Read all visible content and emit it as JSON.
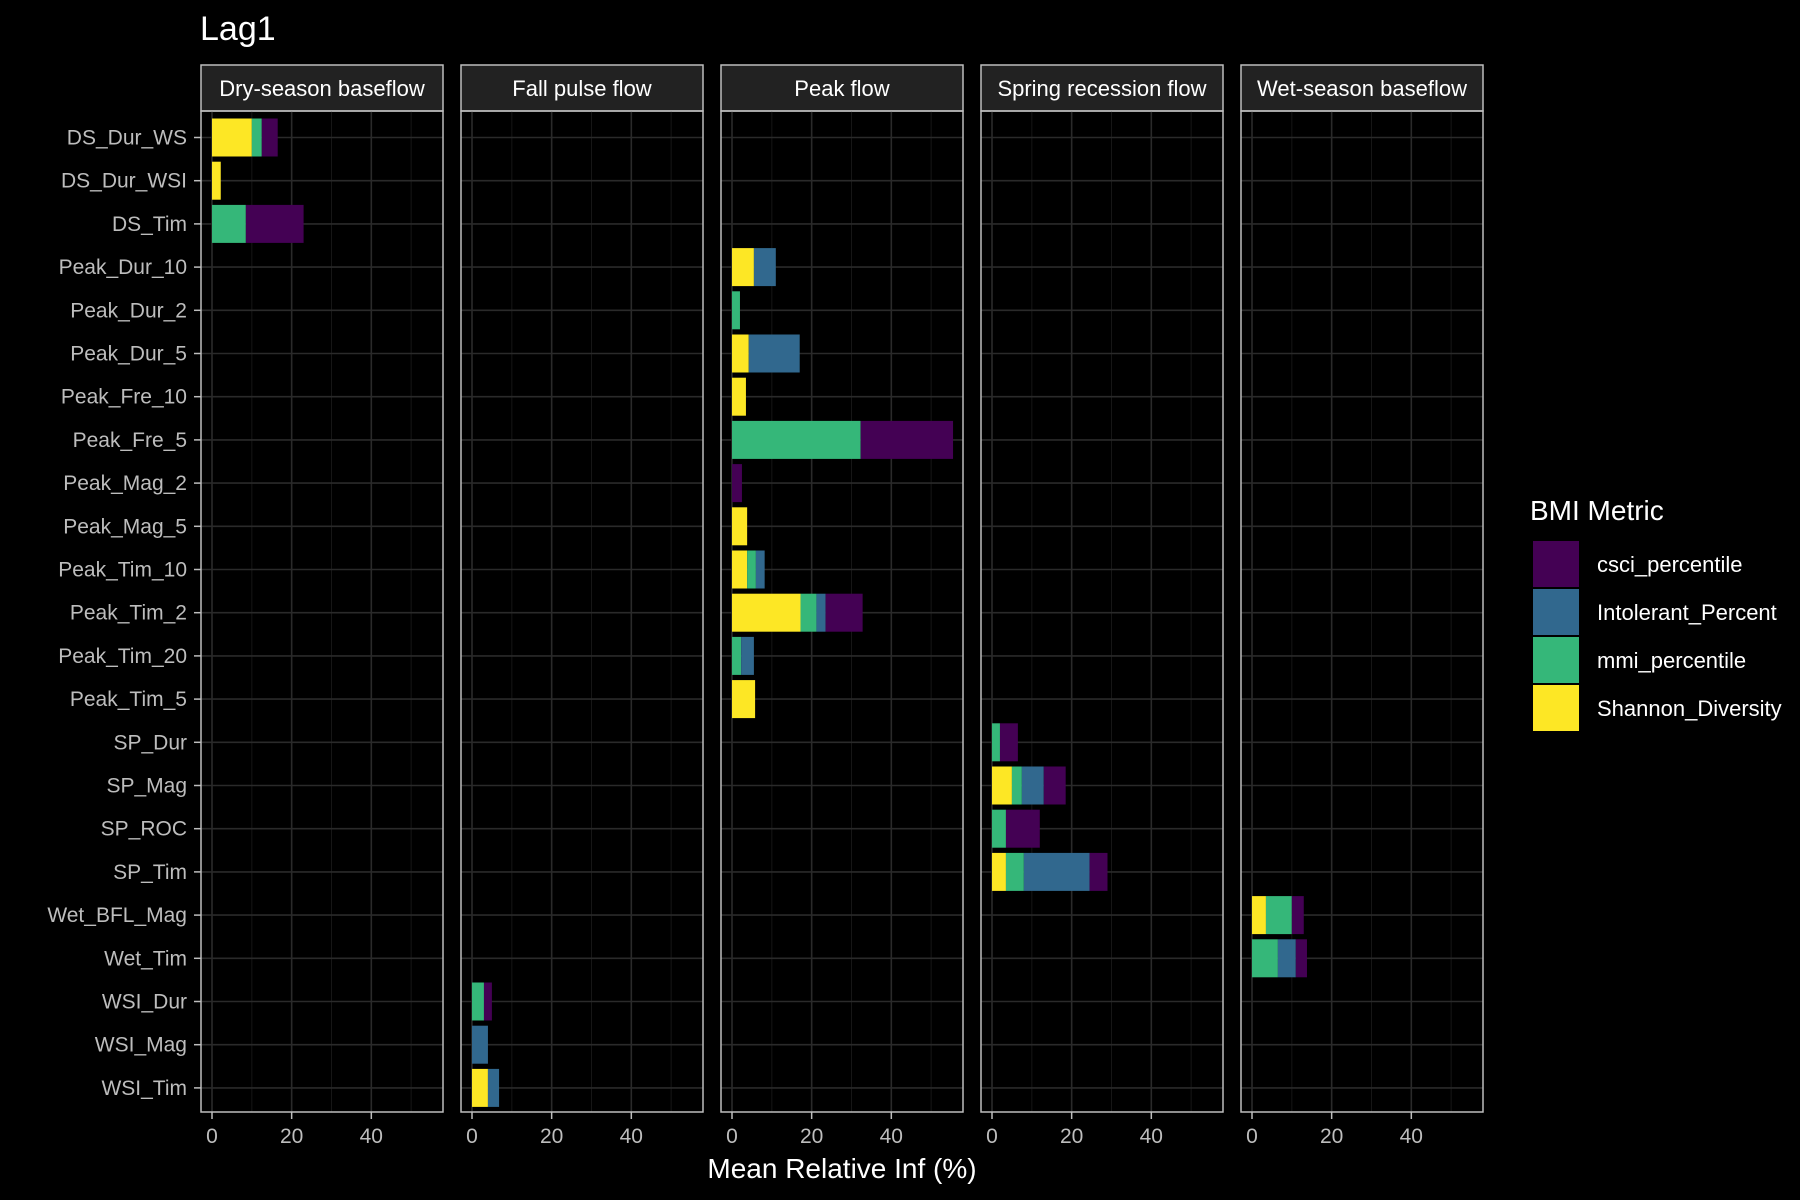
{
  "chart_data": {
    "type": "bar",
    "orientation": "horizontal",
    "stacked": true,
    "title": "Lag1",
    "xlabel": "Mean Relative Inf (%)",
    "ylabel": "",
    "xlim": [
      0,
      58
    ],
    "xticks": [
      0,
      20,
      40
    ],
    "grid": true,
    "legend": {
      "title": "BMI Metric",
      "position": "right",
      "items": [
        {
          "name": "csci_percentile",
          "color": "#440154"
        },
        {
          "name": "Intolerant_Percent",
          "color": "#31688E"
        },
        {
          "name": "mmi_percentile",
          "color": "#35B779"
        },
        {
          "name": "Shannon_Diversity",
          "color": "#FDE725"
        }
      ]
    },
    "categories": [
      "DS_Dur_WS",
      "DS_Dur_WSI",
      "DS_Tim",
      "Peak_Dur_10",
      "Peak_Dur_2",
      "Peak_Dur_5",
      "Peak_Fre_10",
      "Peak_Fre_5",
      "Peak_Mag_2",
      "Peak_Mag_5",
      "Peak_Tim_10",
      "Peak_Tim_2",
      "Peak_Tim_20",
      "Peak_Tim_5",
      "SP_Dur",
      "SP_Mag",
      "SP_ROC",
      "SP_Tim",
      "Wet_BFL_Mag",
      "Wet_Tim",
      "WSI_Dur",
      "WSI_Mag",
      "WSI_Tim"
    ],
    "stack_order": [
      "Shannon_Diversity",
      "mmi_percentile",
      "Intolerant_Percent",
      "csci_percentile"
    ],
    "facets": [
      {
        "name": "Dry-season baseflow",
        "bars": [
          {
            "category": "DS_Dur_WS",
            "Shannon_Diversity": 10,
            "mmi_percentile": 2.5,
            "Intolerant_Percent": 0,
            "csci_percentile": 4
          },
          {
            "category": "DS_Dur_WSI",
            "Shannon_Diversity": 2.2,
            "mmi_percentile": 0,
            "Intolerant_Percent": 0,
            "csci_percentile": 0
          },
          {
            "category": "DS_Tim",
            "Shannon_Diversity": 0,
            "mmi_percentile": 8.5,
            "Intolerant_Percent": 0,
            "csci_percentile": 14.5
          }
        ]
      },
      {
        "name": "Fall pulse flow",
        "bars": [
          {
            "category": "WSI_Dur",
            "Shannon_Diversity": 0,
            "mmi_percentile": 3,
            "Intolerant_Percent": 0,
            "csci_percentile": 2
          },
          {
            "category": "WSI_Mag",
            "Shannon_Diversity": 0,
            "mmi_percentile": 0,
            "Intolerant_Percent": 4,
            "csci_percentile": 0
          },
          {
            "category": "WSI_Tim",
            "Shannon_Diversity": 4,
            "mmi_percentile": 0,
            "Intolerant_Percent": 2.8,
            "csci_percentile": 0
          }
        ]
      },
      {
        "name": "Peak flow",
        "bars": [
          {
            "category": "Peak_Dur_10",
            "Shannon_Diversity": 5.5,
            "mmi_percentile": 0,
            "Intolerant_Percent": 5.5,
            "csci_percentile": 0
          },
          {
            "category": "Peak_Dur_2",
            "Shannon_Diversity": 0,
            "mmi_percentile": 2,
            "Intolerant_Percent": 0,
            "csci_percentile": 0
          },
          {
            "category": "Peak_Dur_5",
            "Shannon_Diversity": 4.2,
            "mmi_percentile": 0,
            "Intolerant_Percent": 12.8,
            "csci_percentile": 0
          },
          {
            "category": "Peak_Fre_10",
            "Shannon_Diversity": 3.5,
            "mmi_percentile": 0,
            "Intolerant_Percent": 0,
            "csci_percentile": 0
          },
          {
            "category": "Peak_Fre_5",
            "Shannon_Diversity": 0,
            "mmi_percentile": 32.3,
            "Intolerant_Percent": 0,
            "csci_percentile": 23.2
          },
          {
            "category": "Peak_Mag_2",
            "Shannon_Diversity": 0,
            "mmi_percentile": 0,
            "Intolerant_Percent": 0,
            "csci_percentile": 2.5
          },
          {
            "category": "Peak_Mag_5",
            "Shannon_Diversity": 3.8,
            "mmi_percentile": 0,
            "Intolerant_Percent": 0,
            "csci_percentile": 0
          },
          {
            "category": "Peak_Tim_10",
            "Shannon_Diversity": 3.8,
            "mmi_percentile": 2.2,
            "Intolerant_Percent": 2.2,
            "csci_percentile": 0
          },
          {
            "category": "Peak_Tim_2",
            "Shannon_Diversity": 17.2,
            "mmi_percentile": 4,
            "Intolerant_Percent": 2.3,
            "csci_percentile": 9.3
          },
          {
            "category": "Peak_Tim_20",
            "Shannon_Diversity": 0,
            "mmi_percentile": 2.3,
            "Intolerant_Percent": 3.2,
            "csci_percentile": 0
          },
          {
            "category": "Peak_Tim_5",
            "Shannon_Diversity": 5.8,
            "mmi_percentile": 0,
            "Intolerant_Percent": 0,
            "csci_percentile": 0
          }
        ]
      },
      {
        "name": "Spring recession flow",
        "bars": [
          {
            "category": "SP_Dur",
            "Shannon_Diversity": 0,
            "mmi_percentile": 2,
            "Intolerant_Percent": 0,
            "csci_percentile": 4.5
          },
          {
            "category": "SP_Mag",
            "Shannon_Diversity": 5,
            "mmi_percentile": 2.5,
            "Intolerant_Percent": 5.5,
            "csci_percentile": 5.5
          },
          {
            "category": "SP_ROC",
            "Shannon_Diversity": 0,
            "mmi_percentile": 3.5,
            "Intolerant_Percent": 0,
            "csci_percentile": 8.5
          },
          {
            "category": "SP_Tim",
            "Shannon_Diversity": 3.5,
            "mmi_percentile": 4.5,
            "Intolerant_Percent": 16.5,
            "csci_percentile": 4.5
          }
        ]
      },
      {
        "name": "Wet-season baseflow",
        "bars": [
          {
            "category": "Wet_BFL_Mag",
            "Shannon_Diversity": 3.5,
            "mmi_percentile": 6.5,
            "Intolerant_Percent": 0,
            "csci_percentile": 3
          },
          {
            "category": "Wet_Tim",
            "Shannon_Diversity": 0,
            "mmi_percentile": 6.5,
            "Intolerant_Percent": 4.5,
            "csci_percentile": 2.8
          }
        ]
      }
    ]
  }
}
